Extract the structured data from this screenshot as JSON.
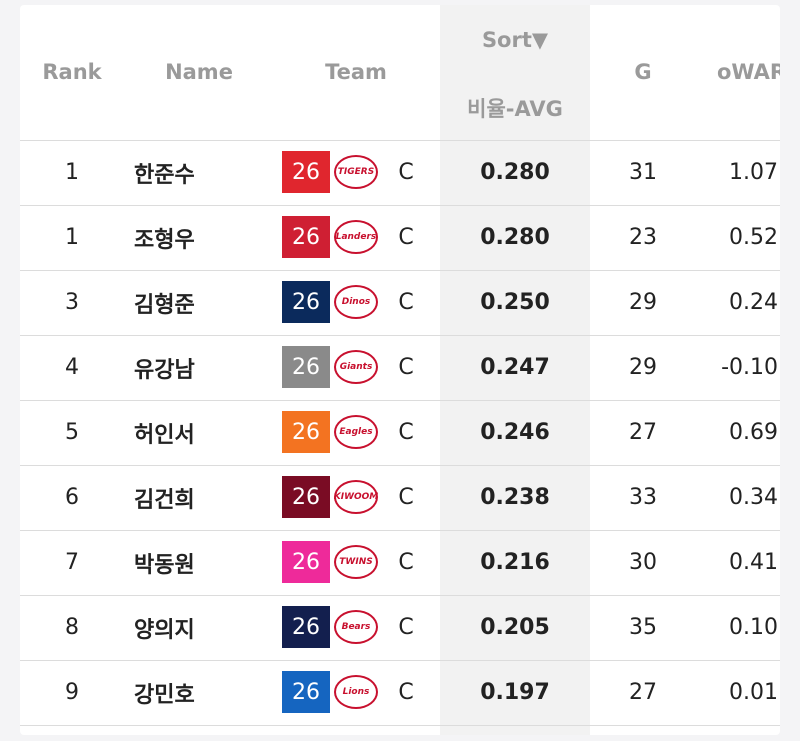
{
  "header": {
    "sort": "Sort▼",
    "columns": [
      "Rank",
      "Name",
      "Team",
      "비율-AVG",
      "G",
      "oWAR"
    ]
  },
  "rows": [
    {
      "rank": "1",
      "name": "한준수",
      "badge": "26",
      "badge_color": "#e0262e",
      "logo": "TIGERS",
      "position": "C",
      "avg": "0.280",
      "g": "31",
      "owar": "1.07"
    },
    {
      "rank": "1",
      "name": "조형우",
      "badge": "26",
      "badge_color": "#cf1f33",
      "logo": "Landers",
      "position": "C",
      "avg": "0.280",
      "g": "23",
      "owar": "0.52"
    },
    {
      "rank": "3",
      "name": "김형준",
      "badge": "26",
      "badge_color": "#0b2a5c",
      "logo": "Dinos",
      "position": "C",
      "avg": "0.250",
      "g": "29",
      "owar": "0.24"
    },
    {
      "rank": "4",
      "name": "유강남",
      "badge": "26",
      "badge_color": "#8a8a8a",
      "logo": "Giants",
      "position": "C",
      "avg": "0.247",
      "g": "29",
      "owar": "-0.10"
    },
    {
      "rank": "5",
      "name": "허인서",
      "badge": "26",
      "badge_color": "#f37321",
      "logo": "Eagles",
      "position": "C",
      "avg": "0.246",
      "g": "27",
      "owar": "0.69"
    },
    {
      "rank": "6",
      "name": "김건희",
      "badge": "26",
      "badge_color": "#7a0c24",
      "logo": "KIWOOM",
      "position": "C",
      "avg": "0.238",
      "g": "33",
      "owar": "0.34"
    },
    {
      "rank": "7",
      "name": "박동원",
      "badge": "26",
      "badge_color": "#ee2a9a",
      "logo": "TWINS",
      "position": "C",
      "avg": "0.216",
      "g": "30",
      "owar": "0.41"
    },
    {
      "rank": "8",
      "name": "양의지",
      "badge": "26",
      "badge_color": "#131f4e",
      "logo": "Bears",
      "position": "C",
      "avg": "0.205",
      "g": "35",
      "owar": "0.10"
    },
    {
      "rank": "9",
      "name": "강민호",
      "badge": "26",
      "badge_color": "#1565c0",
      "logo": "Lions",
      "position": "C",
      "avg": "0.197",
      "g": "27",
      "owar": "0.01"
    }
  ]
}
